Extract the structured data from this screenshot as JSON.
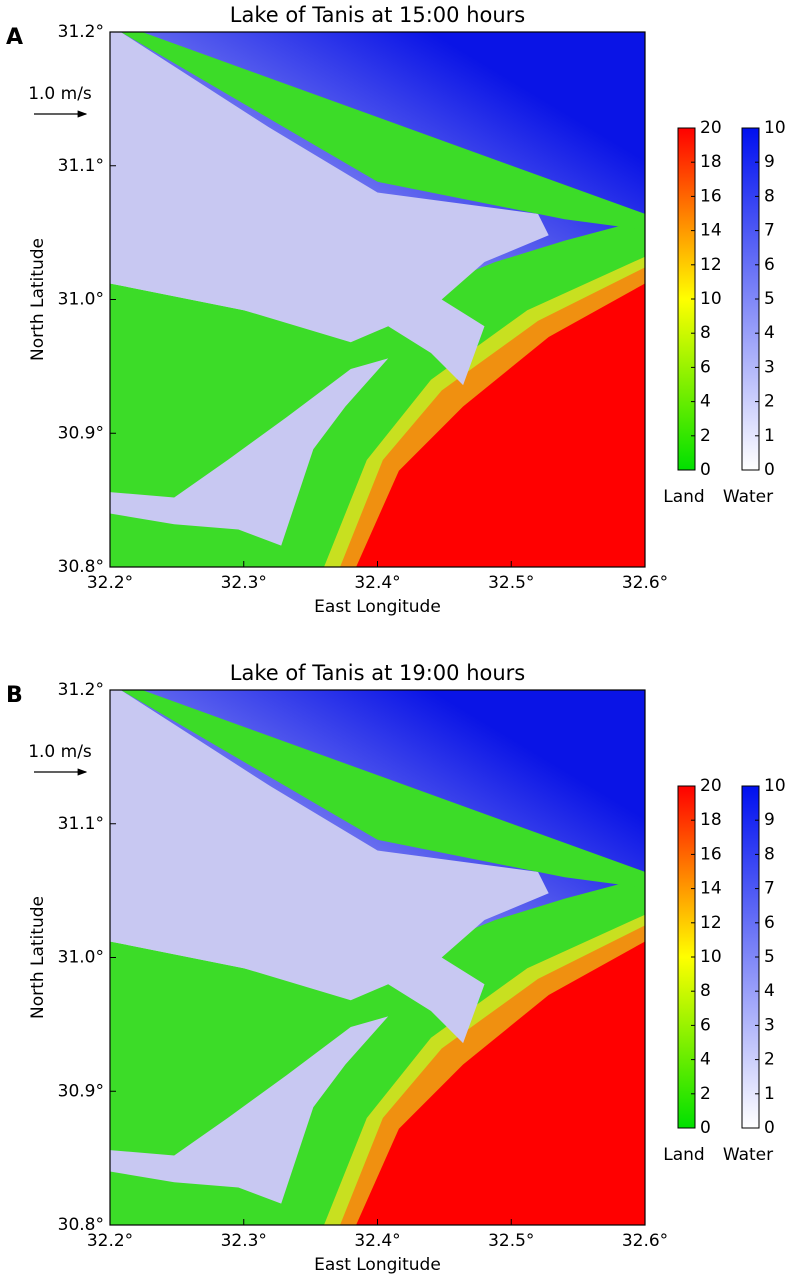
{
  "chart_data": [
    {
      "type": "map",
      "panel_label": "A",
      "title": "Lake of Tanis at 15:00 hours",
      "xlabel": "East Longitude",
      "ylabel": "North Latitude",
      "xlim": [
        32.2,
        32.6
      ],
      "ylim": [
        30.8,
        31.2
      ],
      "xticks": [
        {
          "value": 32.2,
          "label": "32.2°"
        },
        {
          "value": 32.3,
          "label": "32.3°"
        },
        {
          "value": 32.4,
          "label": "32.4°"
        },
        {
          "value": 32.5,
          "label": "32.5°"
        },
        {
          "value": 32.6,
          "label": "32.6°"
        }
      ],
      "yticks": [
        {
          "value": 30.8,
          "label": "30.8°"
        },
        {
          "value": 30.9,
          "label": "30.9°"
        },
        {
          "value": 31.0,
          "label": "31.0°"
        },
        {
          "value": 31.1,
          "label": "31.1°"
        },
        {
          "value": 31.2,
          "label": "31.2°"
        }
      ],
      "scale_label": "1.0 m/s",
      "colorbars": [
        {
          "label": "Land",
          "lim": [
            0,
            20
          ],
          "ticks": [
            0,
            2,
            4,
            6,
            8,
            10,
            12,
            14,
            16,
            18,
            20
          ],
          "colors": [
            "#00e000",
            "#ffff00",
            "#ff0000"
          ]
        },
        {
          "label": "Water",
          "lim": [
            0,
            10
          ],
          "ticks": [
            0,
            1,
            2,
            3,
            4,
            5,
            6,
            7,
            8,
            9,
            10
          ],
          "colors": [
            "#ffffff",
            "#0010f0"
          ]
        }
      ]
    },
    {
      "type": "map",
      "panel_label": "B",
      "title": "Lake of Tanis at 19:00 hours",
      "xlabel": "East Longitude",
      "ylabel": "North Latitude",
      "xlim": [
        32.2,
        32.6
      ],
      "ylim": [
        30.8,
        31.2
      ],
      "xticks": [
        {
          "value": 32.2,
          "label": "32.2°"
        },
        {
          "value": 32.3,
          "label": "32.3°"
        },
        {
          "value": 32.4,
          "label": "32.4°"
        },
        {
          "value": 32.5,
          "label": "32.5°"
        },
        {
          "value": 32.6,
          "label": "32.6°"
        }
      ],
      "yticks": [
        {
          "value": 30.8,
          "label": "30.8°"
        },
        {
          "value": 30.9,
          "label": "30.9°"
        },
        {
          "value": 31.0,
          "label": "31.0°"
        },
        {
          "value": 31.1,
          "label": "31.1°"
        },
        {
          "value": 31.2,
          "label": "31.2°"
        }
      ],
      "scale_label": "1.0 m/s",
      "colorbars": [
        {
          "label": "Land",
          "lim": [
            0,
            20
          ],
          "ticks": [
            0,
            2,
            4,
            6,
            8,
            10,
            12,
            14,
            16,
            18,
            20
          ],
          "colors": [
            "#00e000",
            "#ffff00",
            "#ff0000"
          ]
        },
        {
          "label": "Water",
          "lim": [
            0,
            10
          ],
          "ticks": [
            0,
            1,
            2,
            3,
            4,
            5,
            6,
            7,
            8,
            9,
            10
          ],
          "colors": [
            "#ffffff",
            "#0010f0"
          ]
        }
      ]
    }
  ]
}
